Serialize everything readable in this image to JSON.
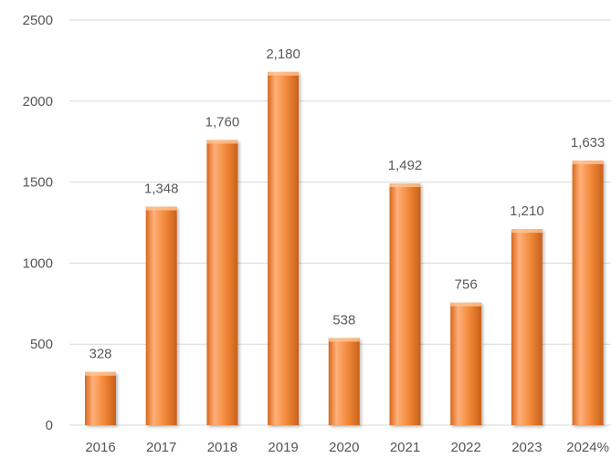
{
  "chart_data": {
    "type": "bar",
    "categories": [
      "2016",
      "2017",
      "2018",
      "2019",
      "2020",
      "2021",
      "2022",
      "2023",
      "2024%"
    ],
    "values": [
      328,
      1348,
      1760,
      2180,
      538,
      1492,
      756,
      1210,
      1633
    ],
    "data_labels": [
      "328",
      "1,348",
      "1,760",
      "2,180",
      "538",
      "1,492",
      "756",
      "1,210",
      "1,633"
    ],
    "y_ticks": [
      "0",
      "500",
      "1000",
      "1500",
      "2000",
      "2500"
    ],
    "ylim": [
      0,
      2500
    ],
    "grid": true,
    "legend": "none",
    "colors": {
      "bar": "#f28a3a",
      "bar_light": "#ffb07a",
      "bar_dark": "#d8681e",
      "grid": "#d9d9d9",
      "text": "#595959"
    }
  }
}
